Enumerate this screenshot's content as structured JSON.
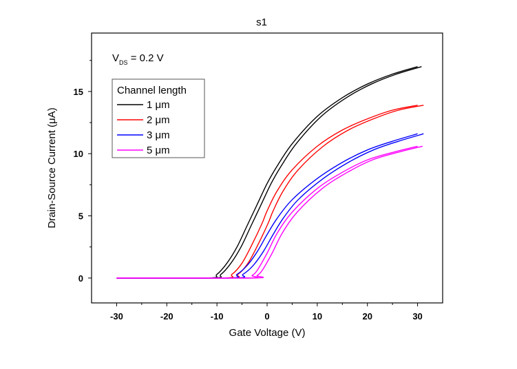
{
  "chart_data": {
    "type": "line",
    "title": "s1",
    "xlabel": "Gate Voltage (V)",
    "ylabel": "Drain-Source Current (μA)",
    "annotation": {
      "main": "V",
      "sub": "DS",
      "rest": " = 0.2 V"
    },
    "xlim": [
      -35,
      35
    ],
    "ylim": [
      -2,
      19.7
    ],
    "xticks": [
      -30,
      -20,
      -10,
      0,
      10,
      20,
      30
    ],
    "yticks": [
      0,
      5,
      10,
      15
    ],
    "grid": false,
    "legend": {
      "title": "Channel length",
      "placement": "top-left"
    },
    "series": [
      {
        "name": "1 μm",
        "color": "#000000",
        "branch_offset_V": 0.8,
        "x": [
          -30,
          -12,
          -10,
          -8,
          -6,
          -4,
          -2,
          0,
          2,
          5,
          10,
          15,
          20,
          25,
          30
        ],
        "y": [
          0,
          0,
          0.3,
          1.2,
          2.5,
          4.2,
          5.9,
          7.6,
          9.0,
          10.8,
          13.0,
          14.5,
          15.6,
          16.4,
          17.0
        ]
      },
      {
        "name": "2 μm",
        "color": "#ff0000",
        "branch_offset_V": 1.2,
        "x": [
          -30,
          -9,
          -7,
          -5,
          -3,
          -1,
          0,
          2,
          5,
          10,
          15,
          20,
          25,
          30
        ],
        "y": [
          0,
          0,
          0.3,
          1.2,
          2.7,
          4.4,
          5.4,
          7.0,
          8.7,
          10.6,
          11.9,
          12.8,
          13.5,
          13.9
        ]
      },
      {
        "name": "3 μm",
        "color": "#0000ff",
        "branch_offset_V": 1.2,
        "x": [
          -30,
          -8,
          -6,
          -4,
          -2,
          0,
          2,
          5,
          10,
          15,
          20,
          25,
          30
        ],
        "y": [
          0,
          0,
          0.3,
          1.0,
          2.1,
          3.5,
          4.8,
          6.3,
          8.0,
          9.3,
          10.3,
          11.0,
          11.6
        ]
      },
      {
        "name": "5 μm",
        "color": "#ff00ff",
        "branch_offset_V": 1.0,
        "x": [
          -30,
          -4,
          -3,
          -2,
          0,
          2,
          5,
          10,
          15,
          20,
          25,
          30
        ],
        "y": [
          0,
          0,
          0.2,
          0.6,
          2.0,
          3.6,
          5.3,
          7.2,
          8.5,
          9.5,
          10.1,
          10.6
        ]
      }
    ]
  }
}
